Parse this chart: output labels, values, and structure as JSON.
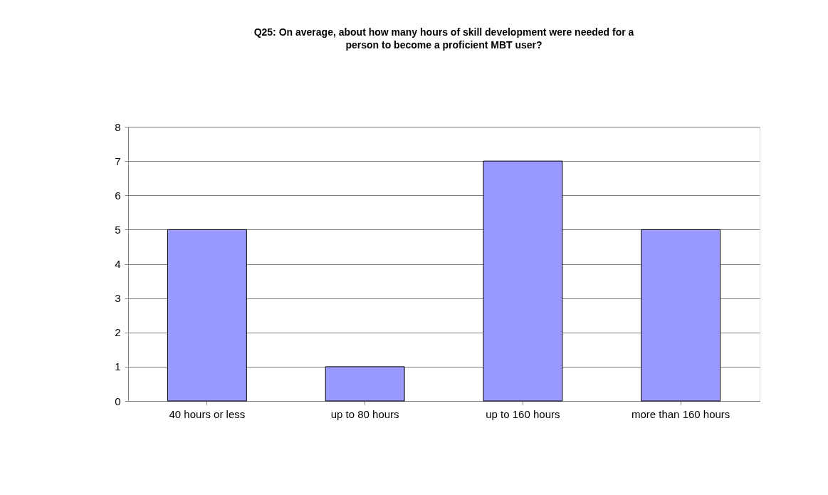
{
  "chart_data": {
    "type": "bar",
    "title": "Q25: On average, about how many hours of skill development were needed for a person to become a proficient MBT user?",
    "categories": [
      "40 hours or less",
      "up to 80 hours",
      "up to 160 hours",
      "more than 160 hours"
    ],
    "values": [
      5,
      1,
      7,
      5
    ],
    "color": "#9999ff",
    "ylim": [
      0,
      8
    ],
    "yticks": [
      0,
      1,
      2,
      3,
      4,
      5,
      6,
      7,
      8
    ],
    "grid": "y"
  }
}
